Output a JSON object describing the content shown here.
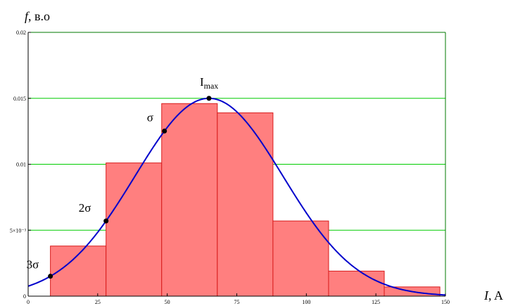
{
  "chart_data": {
    "type": "bar",
    "ylabel_symbol": "f",
    "ylabel_unit": ", в.о",
    "xlabel_symbol": "I",
    "xlabel_unit": ", A",
    "xlim": [
      0,
      150
    ],
    "ylim": [
      0,
      0.02
    ],
    "x_ticks": [
      {
        "value": 0,
        "label": "0"
      },
      {
        "value": 25,
        "label": "25"
      },
      {
        "value": 50,
        "label": "50"
      },
      {
        "value": 75,
        "label": "75"
      },
      {
        "value": 100,
        "label": "100"
      },
      {
        "value": 125,
        "label": "125"
      },
      {
        "value": 150,
        "label": "150"
      }
    ],
    "y_ticks": [
      {
        "value": 0,
        "label": "0"
      },
      {
        "value": 0.005,
        "label": "5×10⁻³"
      },
      {
        "value": 0.01,
        "label": "0.01"
      },
      {
        "value": 0.015,
        "label": "0.015"
      },
      {
        "value": 0.02,
        "label": "0.02"
      }
    ],
    "grid_y": [
      0.005,
      0.01,
      0.015
    ],
    "histogram": [
      {
        "x0": 8,
        "x1": 28,
        "value": 0.0038
      },
      {
        "x0": 28,
        "x1": 48,
        "value": 0.0101
      },
      {
        "x0": 48,
        "x1": 68,
        "value": 0.0146
      },
      {
        "x0": 68,
        "x1": 88,
        "value": 0.0139
      },
      {
        "x0": 88,
        "x1": 108,
        "value": 0.0057
      },
      {
        "x0": 108,
        "x1": 128,
        "value": 0.0019
      },
      {
        "x0": 128,
        "x1": 148,
        "value": 0.0007
      }
    ],
    "curve": {
      "type": "normal_density",
      "mean": 65,
      "sd": 26.6,
      "peak": 0.015
    },
    "points": [
      {
        "label": "3σ",
        "x": 8
      },
      {
        "label": "2σ",
        "x": 28
      },
      {
        "label": "σ",
        "x": 49
      },
      {
        "label": "I",
        "sub": "max",
        "x": 65
      }
    ],
    "colors": {
      "bar_fill": "#ff7f7f",
      "bar_stroke": "#d81b1b",
      "curve": "#0000cc",
      "grid": "#00cc00",
      "frame": "#000000",
      "points": "#000000"
    }
  }
}
